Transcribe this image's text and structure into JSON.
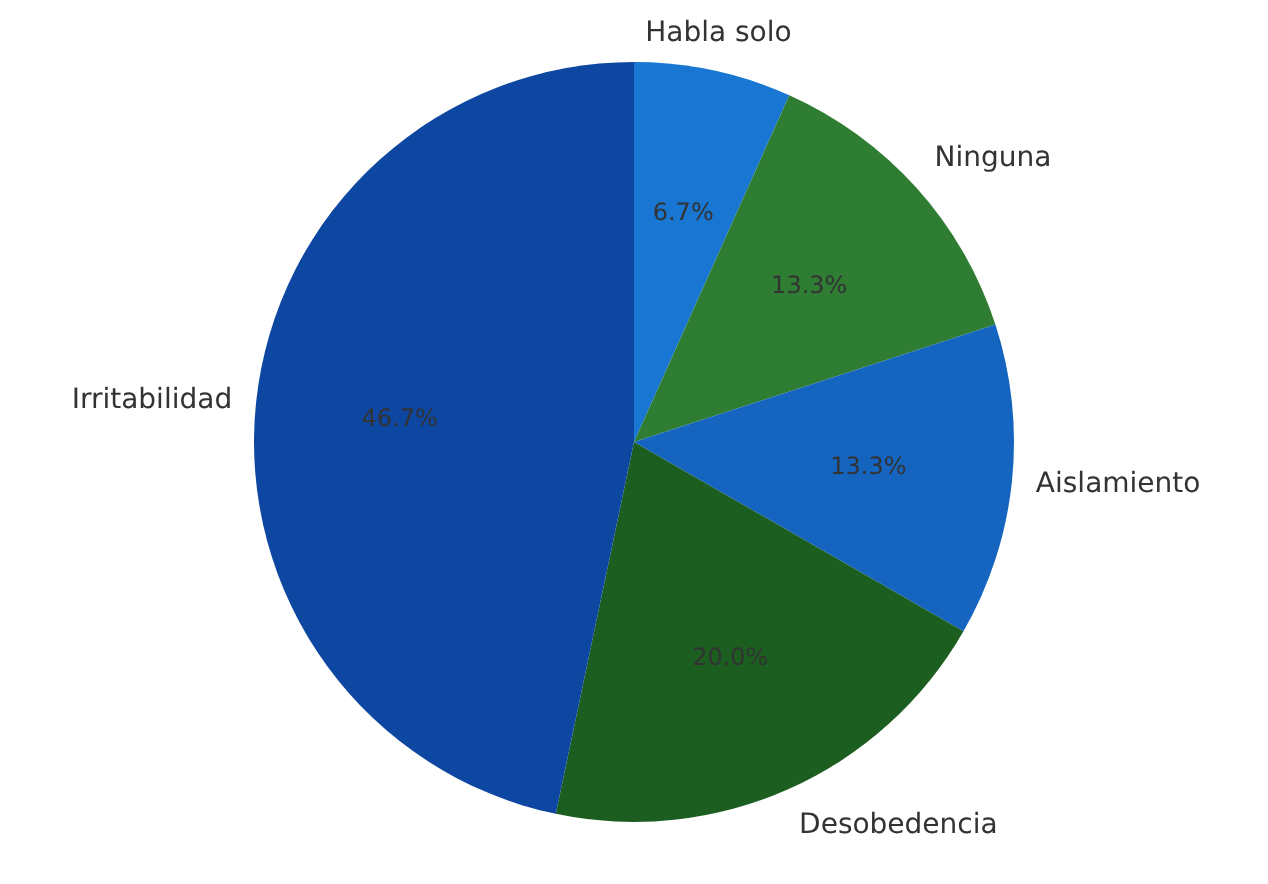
{
  "chart_data": {
    "type": "pie",
    "categories": [
      "Habla solo",
      "Ninguna",
      "Aislamiento",
      "Desobedencia",
      "Irritabilidad"
    ],
    "values": [
      6.7,
      13.3,
      13.3,
      20.0,
      46.7
    ],
    "value_labels": [
      "6.7%",
      "13.3%",
      "13.3%",
      "20.0%",
      "46.7%"
    ],
    "colors": [
      "#1976d2",
      "#2e7d32",
      "#1565c0",
      "#1b5e20",
      "#0d47a1"
    ]
  }
}
